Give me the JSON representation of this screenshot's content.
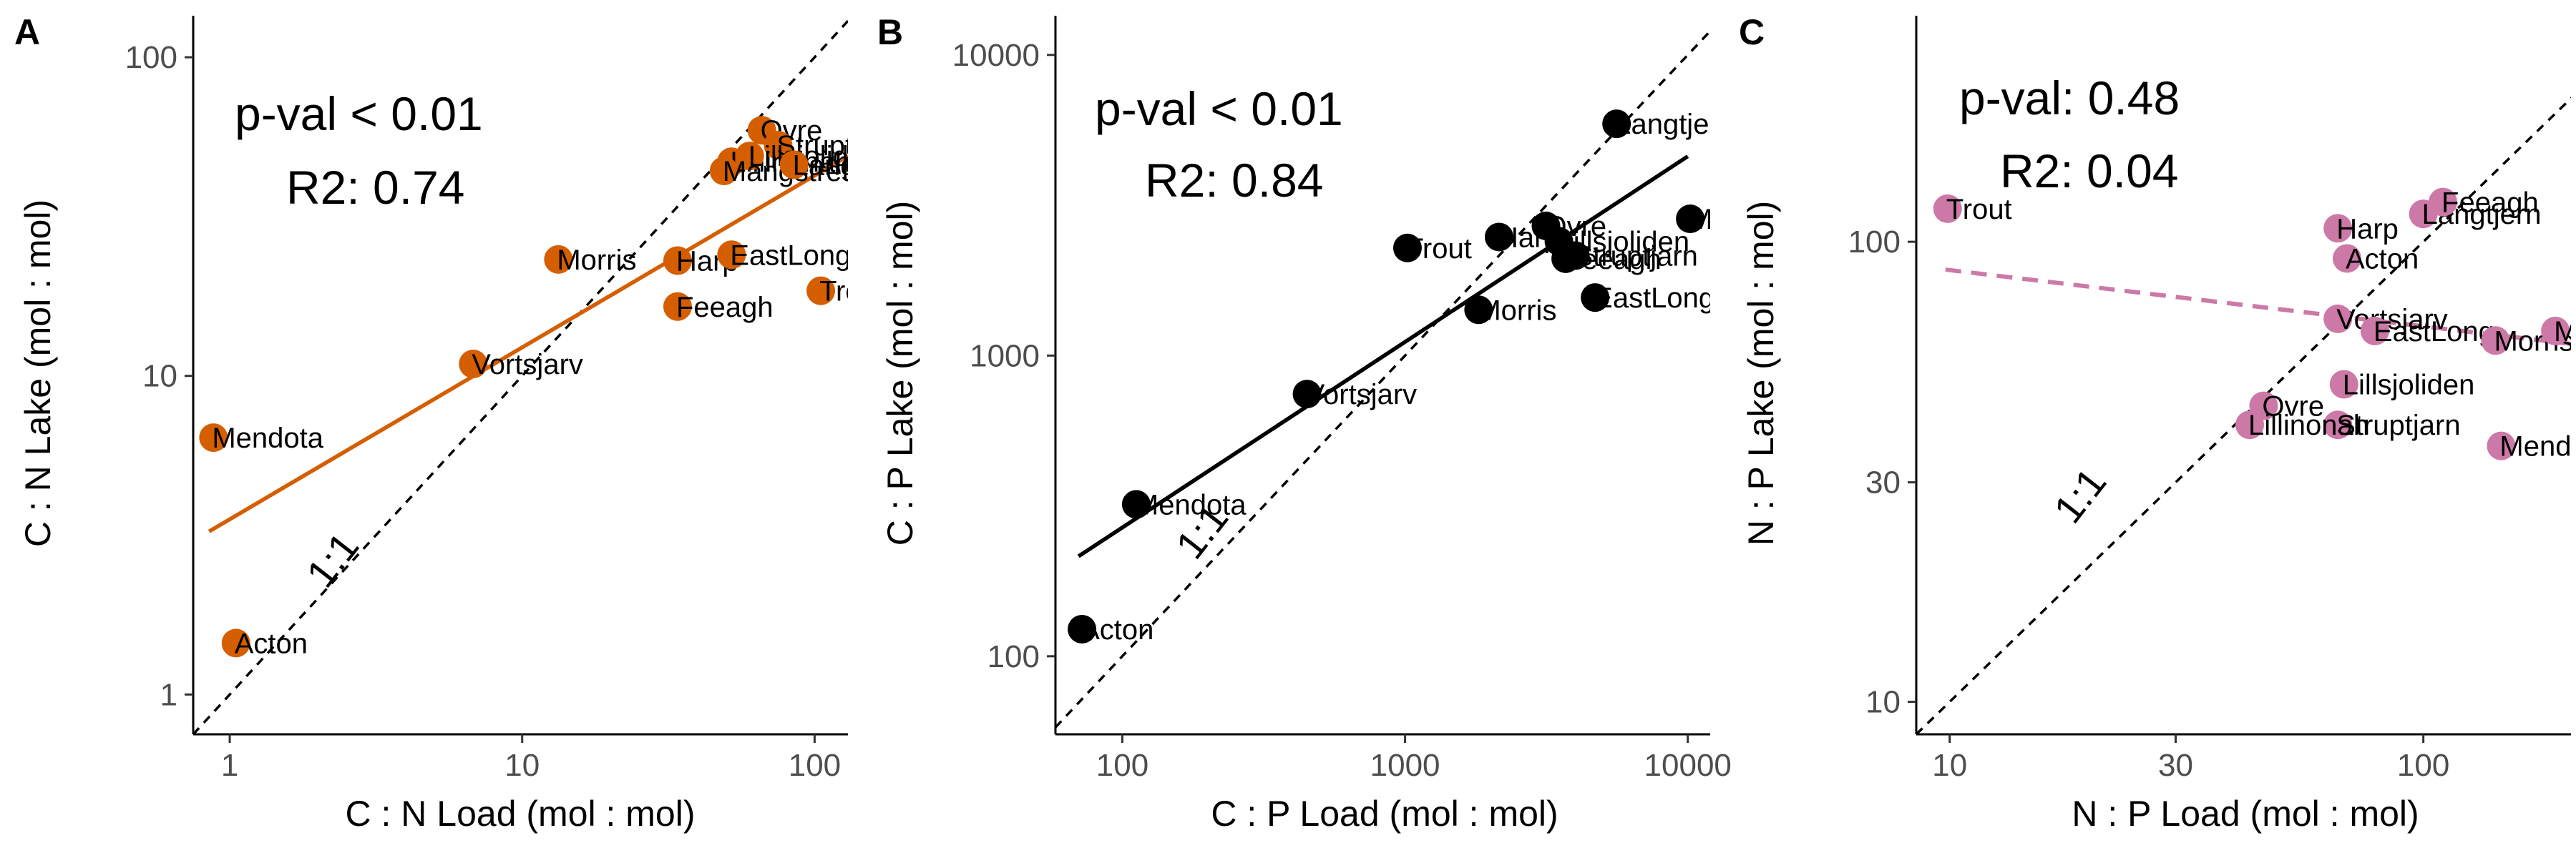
{
  "figure": {
    "panels": [
      "A",
      "B",
      "C"
    ]
  },
  "chart_data": [
    {
      "panel": "A",
      "type": "scatter",
      "xlabel": "C : N Load (mol : mol)",
      "ylabel": "C : N Lake (mol : mol)",
      "x_scale": "log10",
      "y_scale": "log10",
      "xlim": [
        0.75,
        130
      ],
      "ylim": [
        0.75,
        135
      ],
      "x_ticks": [
        1,
        10,
        100
      ],
      "x_tick_labels": [
        "1",
        "10",
        "100"
      ],
      "y_ticks": [
        1,
        10,
        100
      ],
      "y_tick_labels": [
        "1",
        "10",
        "100"
      ],
      "color": "#d55e00",
      "stats": {
        "pval": "p-val < 0.01",
        "r2": "R2: 0.74"
      },
      "one_to_one_label": "1:1",
      "fit_line": {
        "x": [
          0.85,
          130
        ],
        "y": [
          3.25,
          49
        ]
      },
      "points": [
        {
          "label": "Acton",
          "x": 1.05,
          "y": 1.45
        },
        {
          "label": "Mendota",
          "x": 0.88,
          "y": 6.4
        },
        {
          "label": "Vortsjarv",
          "x": 6.8,
          "y": 10.9
        },
        {
          "label": "Morris",
          "x": 13.3,
          "y": 23.2
        },
        {
          "label": "Harp",
          "x": 34,
          "y": 23
        },
        {
          "label": "Feeagh",
          "x": 34,
          "y": 16.5
        },
        {
          "label": "EastLong",
          "x": 52,
          "y": 24
        },
        {
          "label": "Trout",
          "x": 105,
          "y": 18.5
        },
        {
          "label": "Ovre",
          "x": 66,
          "y": 59
        },
        {
          "label": "Struptjarn",
          "x": 75,
          "y": 53
        },
        {
          "label": "Lillinonah",
          "x": 52,
          "y": 47
        },
        {
          "label": "Lillsjoliden",
          "x": 60,
          "y": 49
        },
        {
          "label": "Mangstrettjarn",
          "x": 49,
          "y": 44
        },
        {
          "label": "Langtjern",
          "x": 85,
          "y": 46
        }
      ]
    },
    {
      "panel": "B",
      "type": "scatter",
      "xlabel": "C : P Load (mol : mol)",
      "ylabel": "C : P Lake (mol : mol)",
      "x_scale": "log10",
      "y_scale": "log10",
      "xlim": [
        58,
        12000
      ],
      "ylim": [
        55,
        13500
      ],
      "x_ticks": [
        100,
        1000,
        10000
      ],
      "x_tick_labels": [
        "100",
        "1000",
        "10000"
      ],
      "y_ticks": [
        100,
        1000,
        10000
      ],
      "y_tick_labels": [
        "100",
        "1000",
        "10000"
      ],
      "color": "#000000",
      "stats": {
        "pval": "p-val < 0.01",
        "r2": "R2: 0.84"
      },
      "one_to_one_label": "1:1",
      "fit_line": {
        "x": [
          70,
          10000
        ],
        "y": [
          215,
          4600
        ]
      },
      "points": [
        {
          "label": "Acton",
          "x": 72,
          "y": 123
        },
        {
          "label": "Mendota",
          "x": 112,
          "y": 320
        },
        {
          "label": "Vortsjarv",
          "x": 450,
          "y": 745
        },
        {
          "label": "Morris",
          "x": 1820,
          "y": 1420
        },
        {
          "label": "Trout",
          "x": 1020,
          "y": 2280
        },
        {
          "label": "Harp",
          "x": 2150,
          "y": 2480
        },
        {
          "label": "Ovre",
          "x": 3150,
          "y": 2700
        },
        {
          "label": "Lillsjoliden",
          "x": 3500,
          "y": 2400
        },
        {
          "label": "Feeagh",
          "x": 3700,
          "y": 2100
        },
        {
          "label": "Struptjarn",
          "x": 4000,
          "y": 2150
        },
        {
          "label": "EastLong",
          "x": 4700,
          "y": 1560
        },
        {
          "label": "Langtjern",
          "x": 5600,
          "y": 5900
        },
        {
          "label": "Mangstrettjarn",
          "x": 10200,
          "y": 2850
        }
      ]
    },
    {
      "panel": "C",
      "type": "scatter",
      "xlabel": "N : P Load (mol : mol)",
      "ylabel": "N : P Lake (mol : mol)",
      "x_scale": "log10",
      "y_scale": "log10",
      "xlim": [
        8.5,
        205
      ],
      "ylim": [
        8.5,
        310
      ],
      "x_ticks": [
        10,
        30,
        100
      ],
      "x_tick_labels": [
        "10",
        "30",
        "100"
      ],
      "y_ticks": [
        10,
        30,
        100
      ],
      "y_tick_labels": [
        "10",
        "30",
        "100"
      ],
      "color": "#cc79a7",
      "stats": {
        "pval": "p-val: 0.48",
        "r2": "R2: 0.04"
      },
      "one_to_one_label": "1:1",
      "fit_line": {
        "x": [
          9.8,
          205
        ],
        "y": [
          87,
          60
        ]
      },
      "points": [
        {
          "label": "Trout",
          "x": 9.9,
          "y": 118
        },
        {
          "label": "Harp",
          "x": 66,
          "y": 107
        },
        {
          "label": "Acton",
          "x": 69,
          "y": 92
        },
        {
          "label": "Langtjern",
          "x": 100,
          "y": 115
        },
        {
          "label": "Feeagh",
          "x": 110,
          "y": 122
        },
        {
          "label": "Vortsjarv",
          "x": 66,
          "y": 68
        },
        {
          "label": "EastLong",
          "x": 79,
          "y": 64
        },
        {
          "label": "Morris",
          "x": 142,
          "y": 61
        },
        {
          "label": "Mangstrettjarn",
          "x": 190,
          "y": 64
        },
        {
          "label": "Lillsjoliden",
          "x": 68,
          "y": 49
        },
        {
          "label": "Ovre",
          "x": 46,
          "y": 44
        },
        {
          "label": "Struptjarn",
          "x": 66,
          "y": 40
        },
        {
          "label": "Lillinonah",
          "x": 43,
          "y": 40
        },
        {
          "label": "Mendota",
          "x": 146,
          "y": 36
        }
      ]
    }
  ]
}
